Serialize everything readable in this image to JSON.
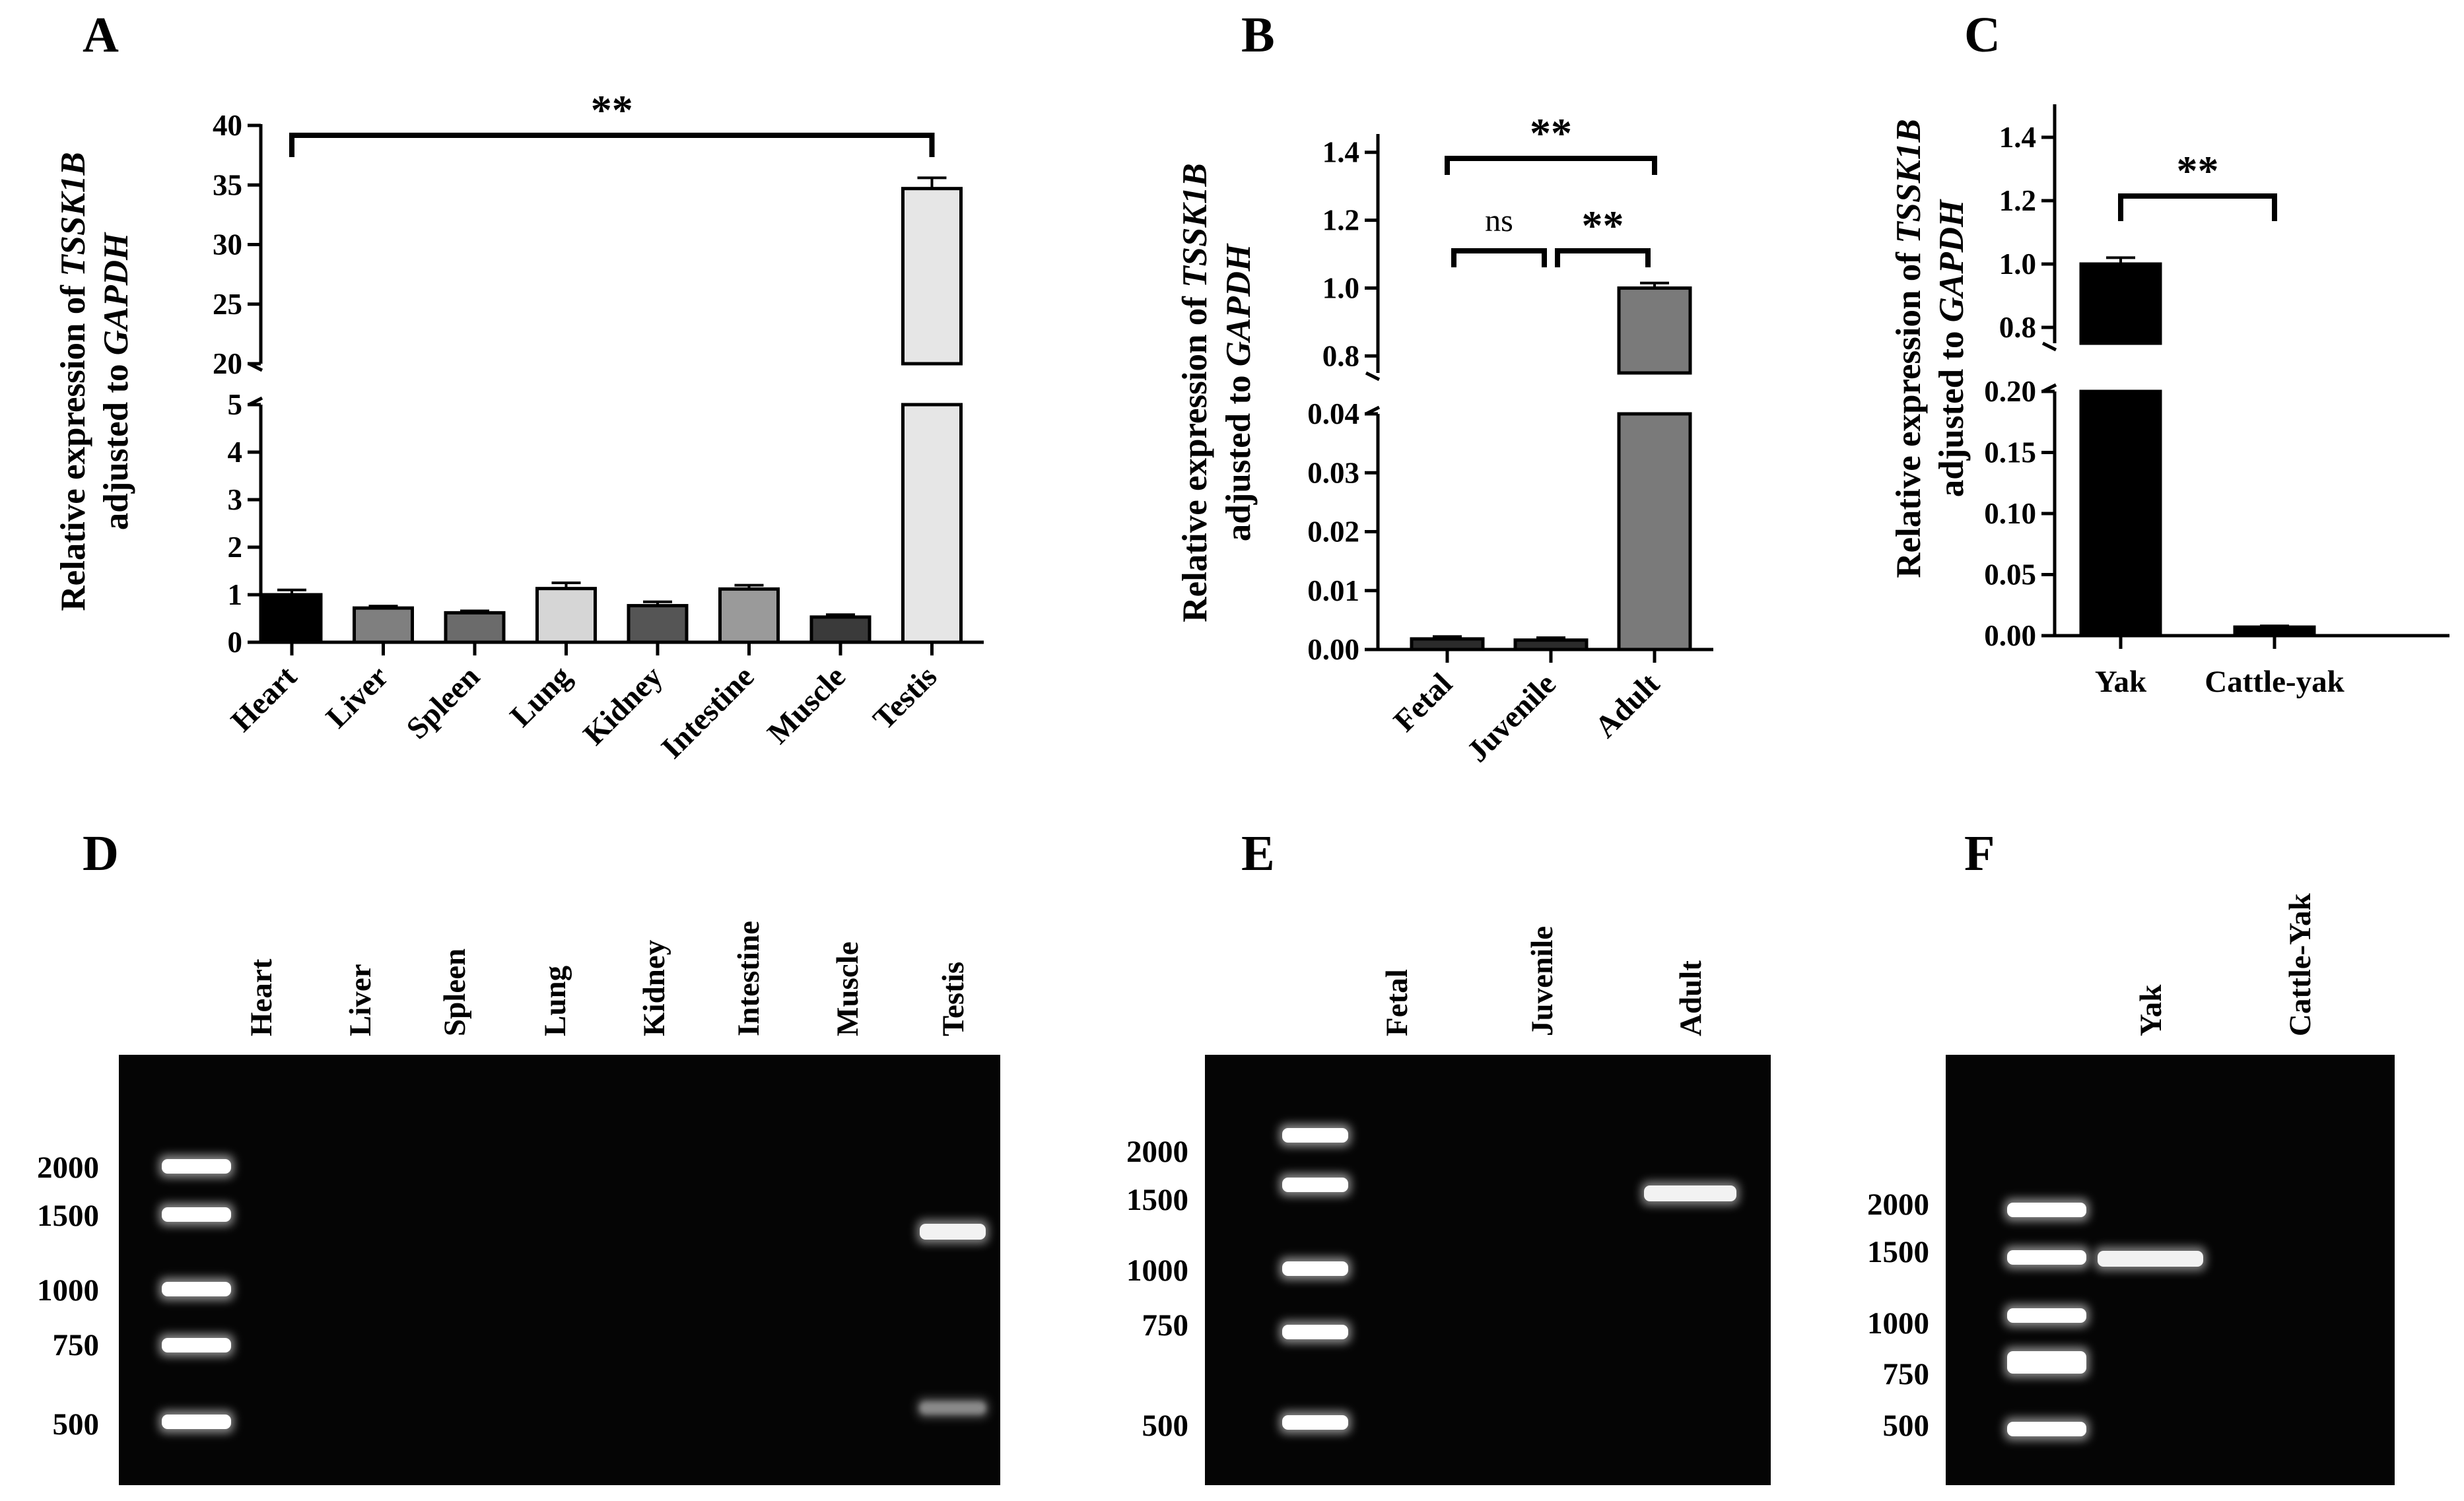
{
  "panels": {
    "A": "A",
    "B": "B",
    "C": "C",
    "D": "D",
    "E": "E",
    "F": "F"
  },
  "ylabel": {
    "line1_plain": "Relative expression of ",
    "line1_gene": "TSSK1B",
    "line2_plain": "adjusted to ",
    "line2_gene": "GAPDH"
  },
  "chart_data": [
    {
      "panel": "A",
      "type": "bar",
      "categories": [
        "Heart",
        "Liver",
        "Spleen",
        "Lung",
        "Kidney",
        "Intestine",
        "Muscle",
        "Testis"
      ],
      "values": [
        1.0,
        0.72,
        0.62,
        1.13,
        0.77,
        1.12,
        0.53,
        34.7
      ],
      "errors": [
        0.1,
        0.04,
        0.04,
        0.12,
        0.08,
        0.08,
        0.05,
        0.9
      ],
      "colors": [
        "#000000",
        "#7f7f7f",
        "#6b6b6b",
        "#d6d6d6",
        "#555555",
        "#9a9a9a",
        "#3a3a3a",
        "#e6e6e6"
      ],
      "axis_break": true,
      "ylim_lower": [
        0,
        5
      ],
      "ylim_upper": [
        20,
        40
      ],
      "yticks_lower": [
        "0",
        "1",
        "2",
        "3",
        "4",
        "5"
      ],
      "yticks_upper": [
        "20",
        "25",
        "30",
        "35",
        "40"
      ],
      "significance": [
        {
          "from": "Heart",
          "to": "Testis",
          "label": "**"
        }
      ]
    },
    {
      "panel": "B",
      "type": "bar",
      "categories": [
        "Fetal",
        "Juvenile",
        "Adult"
      ],
      "values": [
        0.0018,
        0.0016,
        1.0
      ],
      "errors": [
        0.0004,
        0.0004,
        0.015
      ],
      "colors": [
        "#2b2b2b",
        "#2b2b2b",
        "#7a7a7a"
      ],
      "axis_break": true,
      "ylim_lower": [
        0,
        0.04
      ],
      "ylim_upper": [
        0.75,
        1.45
      ],
      "yticks_lower": [
        "0.00",
        "0.01",
        "0.02",
        "0.03",
        "0.04"
      ],
      "yticks_upper": [
        "0.8",
        "1.0",
        "1.2",
        "1.4"
      ],
      "significance": [
        {
          "from": "Fetal",
          "to": "Juvenile",
          "label": "ns"
        },
        {
          "from": "Juvenile",
          "to": "Adult",
          "label": "**"
        },
        {
          "from": "Fetal",
          "to": "Adult",
          "label": "**"
        }
      ]
    },
    {
      "panel": "C",
      "type": "bar",
      "categories": [
        "Yak",
        "Cattle-yak"
      ],
      "values": [
        1.0,
        0.007
      ],
      "errors": [
        0.02,
        0.001
      ],
      "colors": [
        "#000000",
        "#000000"
      ],
      "axis_break": true,
      "ylim_lower": [
        0,
        0.2
      ],
      "ylim_upper": [
        0.75,
        1.5
      ],
      "yticks_lower": [
        "0.00",
        "0.05",
        "0.10",
        "0.15",
        "0.20"
      ],
      "yticks_upper": [
        "0.8",
        "1.0",
        "1.2",
        "1.4"
      ],
      "significance": [
        {
          "from": "Yak",
          "to": "Cattle-yak",
          "label": "**"
        }
      ]
    }
  ],
  "gels": [
    {
      "panel": "D",
      "lanes": [
        "Heart",
        "Liver",
        "Spleen",
        "Lung",
        "Kidney",
        "Intestine",
        "Muscle",
        "Testis"
      ],
      "ladder_labels": [
        "2000",
        "1500",
        "1000",
        "750",
        "500"
      ],
      "bands": [
        {
          "lane": "Testis",
          "size": "1300"
        },
        {
          "lane": "Testis",
          "size": "500"
        }
      ]
    },
    {
      "panel": "E",
      "lanes": [
        "Fetal",
        "Juvenile",
        "Adult"
      ],
      "ladder_labels": [
        "2000",
        "1500",
        "1000",
        "750",
        "500"
      ],
      "bands": [
        {
          "lane": "Adult",
          "size": "1300"
        }
      ]
    },
    {
      "panel": "F",
      "lanes": [
        "Yak",
        "Cattle-Yak"
      ],
      "ladder_labels": [
        "2000",
        "1500",
        "1000",
        "750",
        "500"
      ],
      "bands": [
        {
          "lane": "Yak",
          "size": "1300"
        }
      ]
    }
  ]
}
